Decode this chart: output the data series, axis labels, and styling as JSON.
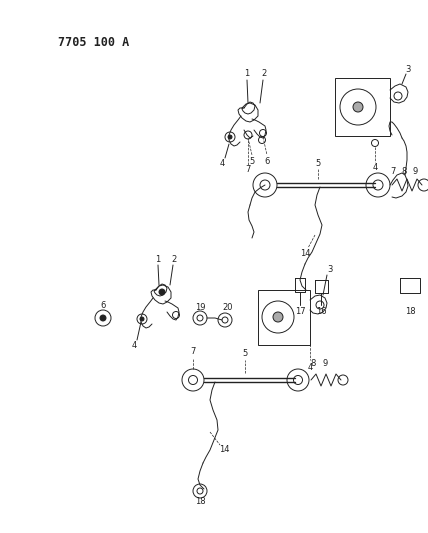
{
  "title": "7705 100 A",
  "bg_color": "#ffffff",
  "line_color": "#222222",
  "figsize": [
    4.28,
    5.33
  ],
  "dpi": 100
}
